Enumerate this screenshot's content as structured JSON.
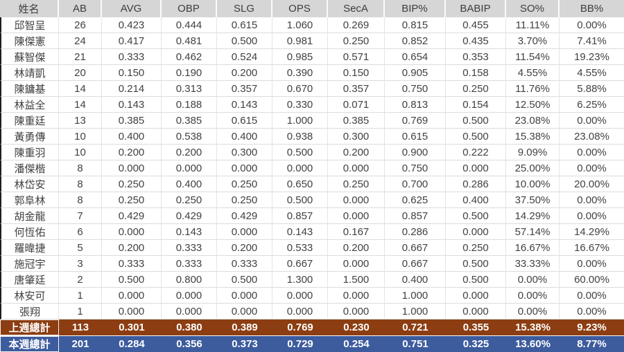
{
  "table": {
    "columns": [
      "姓名",
      "AB",
      "AVG",
      "OBP",
      "SLG",
      "OPS",
      "SecA",
      "BIP%",
      "BABIP",
      "SO%",
      "BB%"
    ],
    "players": [
      {
        "name": "邱智呈",
        "values": [
          "26",
          "0.423",
          "0.444",
          "0.615",
          "1.060",
          "0.269",
          "0.815",
          "0.455",
          "11.11%",
          "0.00%"
        ]
      },
      {
        "name": "陳傑憲",
        "values": [
          "24",
          "0.417",
          "0.481",
          "0.500",
          "0.981",
          "0.250",
          "0.852",
          "0.435",
          "3.70%",
          "7.41%"
        ]
      },
      {
        "name": "蘇智傑",
        "values": [
          "21",
          "0.333",
          "0.462",
          "0.524",
          "0.985",
          "0.571",
          "0.654",
          "0.353",
          "11.54%",
          "19.23%"
        ]
      },
      {
        "name": "林靖凱",
        "values": [
          "20",
          "0.150",
          "0.190",
          "0.200",
          "0.390",
          "0.150",
          "0.905",
          "0.158",
          "4.55%",
          "4.55%"
        ]
      },
      {
        "name": "陳鏞基",
        "values": [
          "14",
          "0.214",
          "0.313",
          "0.357",
          "0.670",
          "0.357",
          "0.750",
          "0.250",
          "11.76%",
          "5.88%"
        ]
      },
      {
        "name": "林益全",
        "values": [
          "14",
          "0.143",
          "0.188",
          "0.143",
          "0.330",
          "0.071",
          "0.813",
          "0.154",
          "12.50%",
          "6.25%"
        ]
      },
      {
        "name": "陳重廷",
        "values": [
          "13",
          "0.385",
          "0.385",
          "0.615",
          "1.000",
          "0.385",
          "0.769",
          "0.500",
          "23.08%",
          "0.00%"
        ]
      },
      {
        "name": "黃勇傳",
        "values": [
          "10",
          "0.400",
          "0.538",
          "0.400",
          "0.938",
          "0.300",
          "0.615",
          "0.500",
          "15.38%",
          "23.08%"
        ]
      },
      {
        "name": "陳重羽",
        "values": [
          "10",
          "0.200",
          "0.200",
          "0.300",
          "0.500",
          "0.200",
          "0.900",
          "0.222",
          "9.09%",
          "0.00%"
        ]
      },
      {
        "name": "潘傑楷",
        "values": [
          "8",
          "0.000",
          "0.000",
          "0.000",
          "0.000",
          "0.000",
          "0.750",
          "0.000",
          "25.00%",
          "0.00%"
        ]
      },
      {
        "name": "林岱安",
        "values": [
          "8",
          "0.250",
          "0.400",
          "0.250",
          "0.650",
          "0.250",
          "0.700",
          "0.286",
          "10.00%",
          "20.00%"
        ]
      },
      {
        "name": "郭阜林",
        "values": [
          "8",
          "0.250",
          "0.250",
          "0.250",
          "0.500",
          "0.000",
          "0.625",
          "0.400",
          "37.50%",
          "0.00%"
        ]
      },
      {
        "name": "胡金龍",
        "values": [
          "7",
          "0.429",
          "0.429",
          "0.429",
          "0.857",
          "0.000",
          "0.857",
          "0.500",
          "14.29%",
          "0.00%"
        ]
      },
      {
        "name": "何恆佑",
        "values": [
          "6",
          "0.000",
          "0.143",
          "0.000",
          "0.143",
          "0.167",
          "0.286",
          "0.000",
          "57.14%",
          "14.29%"
        ]
      },
      {
        "name": "羅暐捷",
        "values": [
          "5",
          "0.200",
          "0.333",
          "0.200",
          "0.533",
          "0.200",
          "0.667",
          "0.250",
          "16.67%",
          "16.67%"
        ]
      },
      {
        "name": "施冠宇",
        "values": [
          "3",
          "0.333",
          "0.333",
          "0.333",
          "0.667",
          "0.000",
          "0.667",
          "0.500",
          "33.33%",
          "0.00%"
        ]
      },
      {
        "name": "唐肇廷",
        "values": [
          "2",
          "0.500",
          "0.800",
          "0.500",
          "1.300",
          "1.500",
          "0.400",
          "0.500",
          "0.00%",
          "60.00%"
        ]
      },
      {
        "name": "林安可",
        "values": [
          "1",
          "0.000",
          "0.000",
          "0.000",
          "0.000",
          "0.000",
          "1.000",
          "0.000",
          "0.00%",
          "0.00%"
        ]
      },
      {
        "name": "張翔",
        "values": [
          "1",
          "0.000",
          "0.000",
          "0.000",
          "0.000",
          "0.000",
          "1.000",
          "0.000",
          "0.00%",
          "0.00%"
        ]
      }
    ],
    "totals": [
      {
        "label": "上週總計",
        "values": [
          "113",
          "0.301",
          "0.380",
          "0.389",
          "0.769",
          "0.230",
          "0.721",
          "0.355",
          "15.38%",
          "9.23%"
        ],
        "bg": "#8C3D12"
      },
      {
        "label": "本週總計",
        "values": [
          "201",
          "0.284",
          "0.356",
          "0.373",
          "0.729",
          "0.254",
          "0.751",
          "0.325",
          "13.60%",
          "8.77%"
        ],
        "bg": "#3D5C9E"
      }
    ],
    "colors": {
      "header_bg": "#D6D6D6",
      "header_text": "#3D3D3D",
      "data_text": "#414141",
      "gridline": "#DCDCDC",
      "last_week_bg": "#8C3D12",
      "this_week_bg": "#3D5C9E",
      "totals_text": "#FFFFFF"
    }
  }
}
